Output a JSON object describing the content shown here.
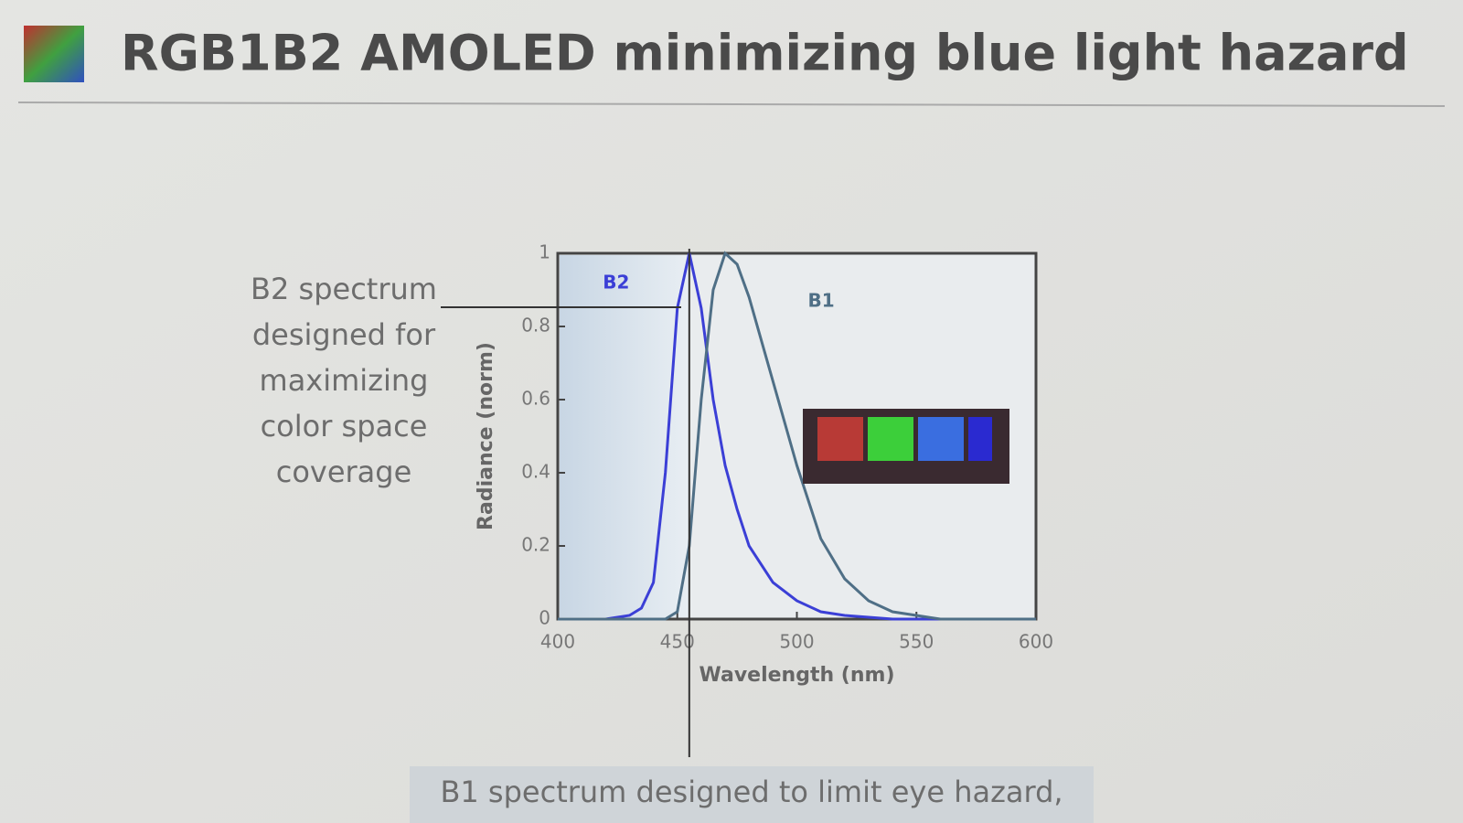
{
  "slide": {
    "title": "RGB1B2 AMOLED minimizing blue light hazard",
    "left_note": [
      "B2 spectrum",
      "designed for",
      "maximizing",
      "color space",
      "coverage"
    ],
    "bottom_note": "B1 spectrum designed to limit eye hazard,"
  },
  "chart_data": {
    "type": "line",
    "x_label": "Wavelength (nm)",
    "y_label": "Radiance (norm)",
    "x": [
      400,
      420,
      430,
      435,
      440,
      445,
      450,
      455,
      460,
      465,
      470,
      475,
      480,
      490,
      500,
      510,
      520,
      530,
      540,
      550,
      560,
      600
    ],
    "series": [
      {
        "name": "B2",
        "color": "#3b3fd6",
        "values": [
          0,
          0,
          0.01,
          0.03,
          0.1,
          0.4,
          0.85,
          1,
          0.85,
          0.6,
          0.42,
          0.3,
          0.2,
          0.1,
          0.05,
          0.02,
          0.01,
          0.005,
          0,
          0,
          0,
          0
        ]
      },
      {
        "name": "B1",
        "color": "#4f6f86",
        "values": [
          0,
          0,
          0,
          0,
          0,
          0,
          0.02,
          0.2,
          0.6,
          0.9,
          1,
          0.97,
          0.88,
          0.65,
          0.42,
          0.22,
          0.11,
          0.05,
          0.02,
          0.01,
          0,
          0
        ]
      }
    ],
    "xlim": [
      400,
      600
    ],
    "xticks": [
      400,
      450,
      500,
      550,
      600
    ],
    "ylim": [
      0,
      1
    ],
    "yticks": [
      0,
      0.2,
      0.4,
      0.6,
      0.8,
      1
    ]
  }
}
